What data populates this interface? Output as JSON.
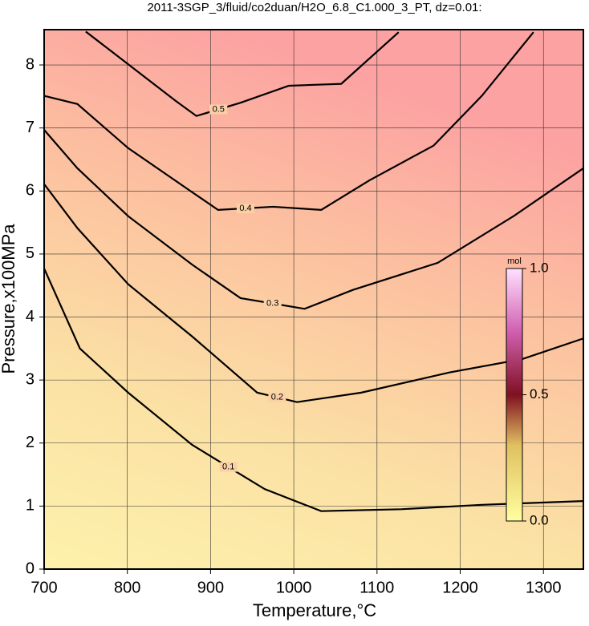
{
  "chart_data": {
    "type": "contour",
    "title": "2011-3SGP_3/fluid/co2duan/H2O_6.8_C1.000_3_PT, dz=0.01:",
    "x_label": "Temperature,°C",
    "y_label": "Pressure,x100MPa",
    "xlim": [
      700,
      1348
    ],
    "ylim": [
      0,
      8.56
    ],
    "xticks": [
      700,
      800,
      900,
      1000,
      1100,
      1200,
      1300
    ],
    "yticks": [
      0,
      1,
      2,
      3,
      4,
      5,
      6,
      7,
      8
    ],
    "grid": true,
    "line_color": "#000000",
    "series": [
      {
        "name": "0.1",
        "x": [
          700,
          743,
          801,
          878,
          965,
          1033,
          1129,
          1226,
          1348
        ],
        "y": [
          4.77,
          3.5,
          2.8,
          1.97,
          1.27,
          0.92,
          0.95,
          1.02,
          1.08
        ]
      },
      {
        "name": "0.2",
        "x": [
          700,
          740,
          801,
          878,
          956,
          1004,
          1081,
          1187,
          1274,
          1348
        ],
        "y": [
          6.11,
          5.41,
          4.52,
          3.69,
          2.8,
          2.65,
          2.8,
          3.12,
          3.33,
          3.66
        ]
      },
      {
        "name": "0.3",
        "x": [
          700,
          740,
          801,
          878,
          936,
          1013,
          1071,
          1173,
          1264,
          1348
        ],
        "y": [
          6.97,
          6.36,
          5.6,
          4.83,
          4.3,
          4.13,
          4.43,
          4.86,
          5.6,
          6.36
        ]
      },
      {
        "name": "0.4",
        "x": [
          700,
          740,
          801,
          878,
          909,
          975,
          1033,
          1091,
          1168,
          1226,
          1288
        ],
        "y": [
          7.51,
          7.38,
          6.68,
          5.98,
          5.7,
          5.75,
          5.7,
          6.17,
          6.72,
          7.51,
          8.52
        ]
      },
      {
        "name": "0.5",
        "x": [
          750,
          857,
          883,
          936,
          994,
          1057,
          1126
        ],
        "y": [
          8.53,
          7.44,
          7.19,
          7.4,
          7.67,
          7.7,
          8.52
        ]
      }
    ],
    "colorbar": {
      "label": "mol",
      "lim": [
        0,
        1
      ],
      "ticks": [
        {
          "value": 0,
          "label": "0.0"
        },
        {
          "value": 0.5,
          "label": "0.5"
        },
        {
          "value": 1,
          "label": "1.0"
        }
      ]
    }
  }
}
